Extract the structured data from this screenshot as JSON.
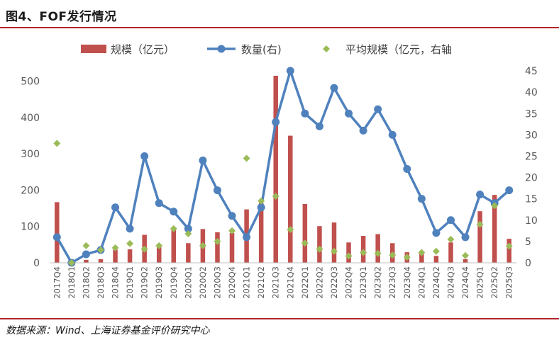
{
  "title": "图4、FOF发行情况",
  "source": "数据来源：Wind、上海证券基金评价研究中心",
  "chart_data": {
    "type": "bar+line+scatter",
    "categories": [
      "2017Q4",
      "2018Q1",
      "2018Q2",
      "2018Q3",
      "2018Q4",
      "2019Q1",
      "2019Q2",
      "2019Q3",
      "2019Q4",
      "2020Q1",
      "2020Q2",
      "2020Q3",
      "2020Q4",
      "2021Q1",
      "2021Q2",
      "2021Q3",
      "2021Q4",
      "2022Q1",
      "2022Q2",
      "2022Q3",
      "2022Q4",
      "2023Q1",
      "2023Q2",
      "2023Q3",
      "2023Q4",
      "2024Q1",
      "2024Q2",
      "2024Q3",
      "2024Q4",
      "2025Q1",
      "2025Q2",
      "2025Q3"
    ],
    "series": [
      {
        "name": "规模（亿元）",
        "kind": "bar",
        "axis": "left",
        "color": "#c0504d",
        "values": [
          167,
          3,
          8,
          10,
          36,
          37,
          77,
          43,
          97,
          54,
          93,
          84,
          82,
          147,
          165,
          515,
          350,
          162,
          101,
          111,
          56,
          74,
          79,
          54,
          29,
          25,
          19,
          56,
          10,
          142,
          187,
          66
        ]
      },
      {
        "name": "数量(右)",
        "kind": "line",
        "axis": "right",
        "color": "#4f81bd",
        "values": [
          6,
          0,
          2,
          3,
          13,
          8,
          25,
          14,
          12,
          8,
          24,
          17,
          11,
          6,
          13,
          33,
          45,
          35,
          32,
          41,
          35,
          31,
          36,
          30,
          22,
          15,
          7,
          10,
          6,
          16,
          14,
          17
        ]
      },
      {
        "name": "平均规模（亿元，右轴",
        "kind": "scatter",
        "axis": "right",
        "color": "#9bbb59",
        "values": [
          28,
          0,
          4,
          3,
          3.5,
          4.5,
          3.2,
          4,
          8,
          6.8,
          4,
          5,
          7.5,
          24.5,
          14.5,
          15.6,
          7.8,
          4.6,
          3.2,
          2.7,
          1.6,
          2.4,
          2.2,
          1.8,
          1.3,
          2.4,
          2.7,
          5.5,
          1.7,
          9,
          13.4,
          3.9
        ]
      }
    ],
    "y_left": {
      "ticks": [
        0,
        100,
        200,
        300,
        400,
        500
      ],
      "range": [
        0,
        552
      ]
    },
    "y_right": {
      "ticks": [
        0,
        5,
        10,
        15,
        20,
        25,
        30,
        35,
        40,
        45
      ],
      "range": [
        0,
        47
      ]
    },
    "legend_position": "top"
  }
}
